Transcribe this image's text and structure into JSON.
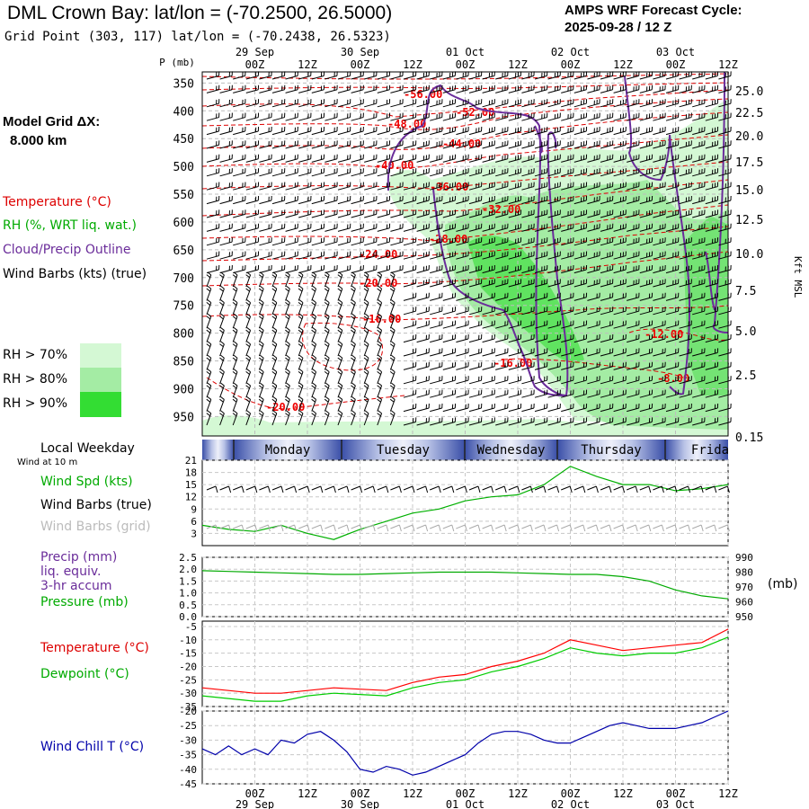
{
  "header": {
    "title": "DML Crown Bay:  lat/lon = (-70.2500, 26.5000)",
    "subtitle": "Grid Point (303, 117) lat/lon = (-70.2438, 26.5323)",
    "forecast_line1": "AMPS WRF Forecast Cycle:",
    "forecast_line2": "2025-09-28 / 12  Z"
  },
  "sidebar": {
    "grid_label": "Model Grid ΔX:",
    "grid_value": "8.000 km",
    "temp_label": "Temperature (°C)",
    "rh_label": "RH (%, WRT liq. wat.)",
    "cloud_label": "Cloud/Precip Outline",
    "wind_label": "Wind Barbs (kts) (true)",
    "rh_legend": [
      "RH > 70%",
      "RH > 80%",
      "RH > 90%"
    ],
    "weekday_label": "Local Weekday",
    "wind10_label": "Wind at 10 m",
    "windspd_label": "Wind Spd (kts)",
    "windbarb_true_label": "Wind Barbs (true)",
    "windbarb_grid_label": "Wind Barbs (grid)",
    "precip_label_1": "Precip (mm)",
    "precip_label_2": "liq. equiv.",
    "precip_label_3": "3-hr accum",
    "pressure_label": "Pressure (mb)",
    "temperature_label": "Temperature (°C)",
    "dewpoint_label": "Dewpoint (°C)",
    "windchill_label": "Wind Chill T (°C)",
    "pressure_unit": "(mb)"
  },
  "colors": {
    "temperature": "#ff0000",
    "rh": "#00b000",
    "cloud": "#6a2c9a",
    "pressure": "#00aa00",
    "windchill": "#0000aa",
    "dewpoint": "#00cc00",
    "rh70": "#d4f8d4",
    "rh80": "#a4eca4",
    "rh90": "#33dd33"
  },
  "chart_data": [
    {
      "type": "heatmap",
      "name": "time-height cross section",
      "x_time_labels": [
        "00Z",
        "12Z",
        "00Z",
        "12Z",
        "00Z",
        "12Z",
        "00Z",
        "12Z",
        "00Z",
        "12Z"
      ],
      "x_date_labels": [
        "29 Sep",
        "30 Sep",
        "01 Oct",
        "02 Oct",
        "03 Oct"
      ],
      "y_label": "P (mb)",
      "y_ticks": [
        350,
        400,
        450,
        500,
        550,
        600,
        650,
        700,
        750,
        800,
        850,
        900,
        950
      ],
      "y2_label": "Kft MSL",
      "y2_ticks": [
        "25.0",
        "22.5",
        "20.0",
        "17.5",
        "15.0",
        "12.5",
        "10.0",
        "7.5",
        "5.0",
        "2.5",
        "0.15"
      ],
      "temperature_contours": [
        "-56.00",
        "-52.00",
        "-48.00",
        "-44.00",
        "-40.00",
        "-36.00",
        "-32.00",
        "-28.00",
        "-24.00",
        "-20.00",
        "-16.00",
        "-12.00",
        "-16.00",
        "-8.00",
        "-20.00"
      ]
    },
    {
      "type": "table",
      "name": "weekday strip",
      "values": [
        "Monday",
        "Tuesday",
        "Wednesday",
        "Thursday",
        "Frida"
      ]
    },
    {
      "type": "line",
      "name": "wind speed",
      "ylabel": "",
      "y_ticks": [
        3,
        6,
        9,
        12,
        15,
        18,
        21
      ],
      "ylim": [
        0,
        21
      ],
      "x_hours": [
        0,
        6,
        12,
        18,
        24,
        30,
        36,
        42,
        48,
        54,
        60,
        66,
        72,
        78,
        84,
        90,
        96,
        102,
        108,
        114,
        120
      ],
      "series": [
        {
          "values": [
            5,
            4,
            3.5,
            5,
            3,
            1.5,
            4,
            6,
            8,
            9,
            11,
            12,
            12.5,
            15,
            19.5,
            17,
            15,
            15,
            13.5,
            14,
            15
          ]
        }
      ]
    },
    {
      "type": "line",
      "name": "pressure",
      "y_ticks": [
        "0.0",
        "0.5",
        "1.0",
        "1.5",
        "2.0",
        "2.5"
      ],
      "ylim": [
        0,
        2.5
      ],
      "y2_ticks": [
        950,
        960,
        970,
        980,
        990
      ],
      "y2lim": [
        950,
        990
      ],
      "x_hours": [
        0,
        6,
        12,
        18,
        24,
        30,
        36,
        42,
        48,
        54,
        60,
        66,
        72,
        78,
        84,
        90,
        96,
        102,
        108,
        114,
        120
      ],
      "series": [
        {
          "values": [
            981,
            980.5,
            980,
            979.5,
            979,
            978.5,
            978.5,
            979,
            979.5,
            980,
            980,
            980,
            979.5,
            979,
            978.5,
            978.5,
            977,
            974,
            968,
            964,
            962
          ]
        }
      ]
    },
    {
      "type": "line",
      "name": "temperature and dewpoint",
      "y_ticks": [
        -35,
        -30,
        -25,
        -20,
        -15,
        -10,
        -5
      ],
      "ylim": [
        -35,
        -3
      ],
      "x_hours": [
        0,
        6,
        12,
        18,
        24,
        30,
        36,
        42,
        48,
        54,
        60,
        66,
        72,
        78,
        84,
        90,
        96,
        102,
        108,
        114,
        120
      ],
      "series": [
        {
          "values": [
            -28,
            -29,
            -30,
            -30,
            -29,
            -28,
            -28.5,
            -29,
            -26,
            -24,
            -23,
            -20,
            -18,
            -15,
            -10,
            -12,
            -14,
            -13,
            -12,
            -11,
            -6
          ]
        },
        {
          "values": [
            -31,
            -32,
            -33,
            -33,
            -31,
            -30,
            -30.5,
            -31,
            -28,
            -26,
            -25,
            -22,
            -20,
            -17,
            -13,
            -15,
            -16,
            -15,
            -15,
            -13,
            -9
          ]
        }
      ]
    },
    {
      "type": "line",
      "name": "wind chill",
      "y_ticks": [
        -45,
        -40,
        -35,
        -30,
        -25,
        -20
      ],
      "ylim": [
        -45,
        -20
      ],
      "x_hours": [
        0,
        3,
        6,
        9,
        12,
        15,
        18,
        21,
        24,
        27,
        30,
        33,
        36,
        39,
        42,
        45,
        48,
        51,
        54,
        57,
        60,
        63,
        66,
        69,
        72,
        75,
        78,
        81,
        84,
        87,
        90,
        93,
        96,
        99,
        102,
        105,
        108,
        111,
        114,
        117,
        120
      ],
      "series": [
        {
          "values": [
            -33,
            -35,
            -32,
            -35,
            -33,
            -35,
            -30,
            -31,
            -28,
            -27,
            -30,
            -34,
            -40,
            -41,
            -39,
            -40,
            -42,
            -41,
            -39,
            -37,
            -35,
            -31,
            -28,
            -27,
            -27,
            -28,
            -30,
            -31,
            -31,
            -29,
            -27,
            -25,
            -24,
            -25,
            -26,
            -26,
            -26,
            -25,
            -24,
            -22,
            -20
          ]
        }
      ]
    }
  ]
}
